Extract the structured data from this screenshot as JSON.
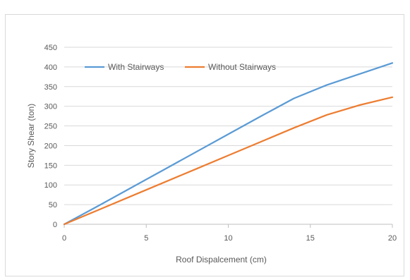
{
  "chart_data": {
    "type": "line",
    "title": "",
    "xlabel": "Roof Dispalcement (cm)",
    "ylabel": "Story Shear (ton)",
    "xlim": [
      0,
      20
    ],
    "ylim": [
      0,
      450
    ],
    "xticks": [
      0,
      5,
      10,
      15,
      20
    ],
    "yticks": [
      0,
      50,
      100,
      150,
      200,
      250,
      300,
      350,
      400,
      450
    ],
    "grid": true,
    "legend_position": "top-left-inside",
    "series": [
      {
        "name": "With Stairways",
        "color": "#5b9bd5",
        "x": [
          0,
          2,
          4,
          6,
          8,
          10,
          12,
          14,
          16,
          18,
          20
        ],
        "y": [
          0,
          45,
          91,
          137,
          183,
          229,
          275,
          320,
          354,
          382,
          410
        ]
      },
      {
        "name": "Without Stairways",
        "color": "#ed7d31",
        "x": [
          0,
          2,
          4,
          6,
          8,
          10,
          12,
          14,
          16,
          18,
          20
        ],
        "y": [
          0,
          35,
          70,
          105,
          140,
          175,
          210,
          245,
          278,
          303,
          323
        ]
      }
    ]
  },
  "colors": {
    "grid": "#d9d9d9",
    "axis": "#bfbfbf",
    "frame": "#d9d9d9"
  }
}
